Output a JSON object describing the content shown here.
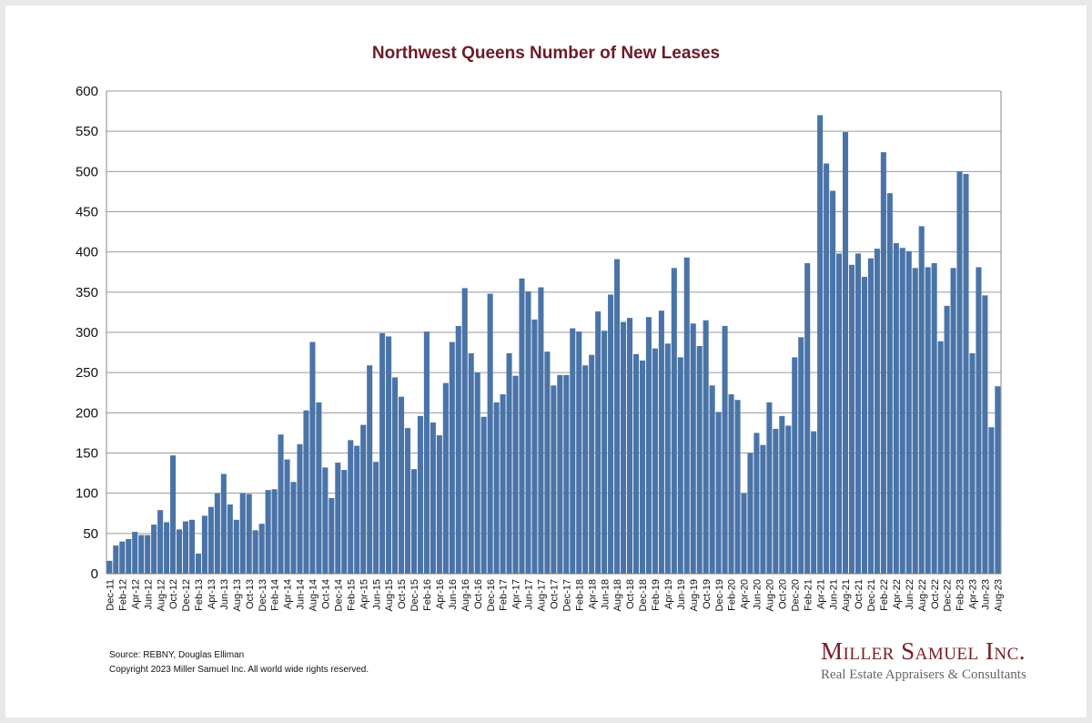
{
  "chart_data": {
    "type": "bar",
    "title": "Northwest Queens Number of New Leases",
    "xlabel": "",
    "ylabel": "",
    "ylim": [
      0,
      600
    ],
    "yticks": [
      0,
      50,
      100,
      150,
      200,
      250,
      300,
      350,
      400,
      450,
      500,
      550,
      600
    ],
    "grid": true,
    "bar_color": "#4a74a8",
    "categories": [
      "Dec-11",
      "Jan-12",
      "Feb-12",
      "Mar-12",
      "Apr-12",
      "May-12",
      "Jun-12",
      "Jul-12",
      "Aug-12",
      "Sep-12",
      "Oct-12",
      "Nov-12",
      "Dec-12",
      "Jan-13",
      "Feb-13",
      "Mar-13",
      "Apr-13",
      "May-13",
      "Jun-13",
      "Jul-13",
      "Aug-13",
      "Sep-13",
      "Oct-13",
      "Nov-13",
      "Dec-13",
      "Jan-14",
      "Feb-14",
      "Mar-14",
      "Apr-14",
      "May-14",
      "Jun-14",
      "Jul-14",
      "Aug-14",
      "Sep-14",
      "Oct-14",
      "Nov-14",
      "Dec-14",
      "Jan-15",
      "Feb-15",
      "Mar-15",
      "Apr-15",
      "May-15",
      "Jun-15",
      "Jul-15",
      "Aug-15",
      "Sep-15",
      "Oct-15",
      "Nov-15",
      "Dec-15",
      "Jan-16",
      "Feb-16",
      "Mar-16",
      "Apr-16",
      "May-16",
      "Jun-16",
      "Jul-16",
      "Aug-16",
      "Sep-16",
      "Oct-16",
      "Nov-16",
      "Dec-16",
      "Jan-17",
      "Feb-17",
      "Mar-17",
      "Apr-17",
      "May-17",
      "Jun-17",
      "Jul-17",
      "Aug-17",
      "Sep-17",
      "Oct-17",
      "Nov-17",
      "Dec-17",
      "Jan-18",
      "Feb-18",
      "Mar-18",
      "Apr-18",
      "May-18",
      "Jun-18",
      "Jul-18",
      "Aug-18",
      "Sep-18",
      "Oct-18",
      "Nov-18",
      "Dec-18",
      "Jan-19",
      "Feb-19",
      "Mar-19",
      "Apr-19",
      "May-19",
      "Jun-19",
      "Jul-19",
      "Aug-19",
      "Sep-19",
      "Oct-19",
      "Nov-19",
      "Dec-19",
      "Jan-20",
      "Feb-20",
      "Mar-20",
      "Apr-20",
      "May-20",
      "Jun-20",
      "Jul-20",
      "Aug-20",
      "Sep-20",
      "Oct-20",
      "Nov-20",
      "Dec-20",
      "Jan-21",
      "Feb-21",
      "Mar-21",
      "Apr-21",
      "May-21",
      "Jun-21",
      "Jul-21",
      "Aug-21",
      "Sep-21",
      "Oct-21",
      "Nov-21",
      "Dec-21",
      "Jan-22",
      "Feb-22",
      "Mar-22",
      "Apr-22",
      "May-22",
      "Jun-22",
      "Jul-22",
      "Aug-22",
      "Sep-22",
      "Oct-22",
      "Nov-22",
      "Dec-22",
      "Jan-23",
      "Feb-23",
      "Mar-23",
      "Apr-23",
      "May-23",
      "Jun-23",
      "Jul-23",
      "Aug-23"
    ],
    "tick_labels": [
      "Dec-11",
      "Feb-12",
      "Apr-12",
      "Jun-12",
      "Aug-12",
      "Oct-12",
      "Dec-12",
      "Feb-13",
      "Apr-13",
      "Jun-13",
      "Aug-13",
      "Oct-13",
      "Dec-13",
      "Feb-14",
      "Apr-14",
      "Jun-14",
      "Aug-14",
      "Oct-14",
      "Dec-14",
      "Feb-15",
      "Apr-15",
      "Jun-15",
      "Aug-15",
      "Oct-15",
      "Dec-15",
      "Feb-16",
      "Apr-16",
      "Jun-16",
      "Aug-16",
      "Oct-16",
      "Dec-16",
      "Feb-17",
      "Apr-17",
      "Jun-17",
      "Aug-17",
      "Oct-17",
      "Dec-17",
      "Feb-18",
      "Apr-18",
      "Jun-18",
      "Aug-18",
      "Oct-18",
      "Dec-18",
      "Feb-19",
      "Apr-19",
      "Jun-19",
      "Aug-19",
      "Oct-19",
      "Dec-19",
      "Feb-20",
      "Apr-20",
      "Jun-20",
      "Aug-20",
      "Oct-20",
      "Dec-20",
      "Feb-21",
      "Apr-21",
      "Jun-21",
      "Aug-21",
      "Oct-21",
      "Dec-21",
      "Feb-22",
      "Apr-22",
      "Jun-22",
      "Aug-22",
      "Oct-22",
      "Dec-22",
      "Feb-23",
      "Apr-23",
      "Jun-23",
      "Aug-23"
    ],
    "values": [
      16,
      35,
      40,
      43,
      52,
      48,
      48,
      61,
      79,
      64,
      147,
      55,
      65,
      67,
      25,
      72,
      83,
      100,
      124,
      86,
      67,
      100,
      99,
      54,
      62,
      104,
      105,
      173,
      142,
      114,
      161,
      203,
      288,
      213,
      132,
      94,
      138,
      129,
      166,
      159,
      185,
      259,
      139,
      299,
      295,
      244,
      220,
      181,
      130,
      196,
      301,
      188,
      172,
      237,
      288,
      308,
      355,
      274,
      250,
      195,
      348,
      213,
      223,
      274,
      246,
      367,
      351,
      316,
      356,
      276,
      234,
      247,
      247,
      305,
      301,
      259,
      272,
      326,
      302,
      347,
      391,
      313,
      318,
      273,
      265,
      319,
      280,
      327,
      286,
      380,
      269,
      393,
      311,
      283,
      315,
      234,
      201,
      308,
      223,
      216,
      100,
      150,
      175,
      160,
      213,
      180,
      196,
      184,
      269,
      294,
      386,
      177,
      570,
      510,
      476,
      398,
      549,
      384,
      398,
      369,
      392,
      404,
      524,
      473,
      411,
      405,
      401,
      380,
      432,
      381,
      386,
      289,
      333,
      380,
      500,
      497,
      274,
      381,
      346,
      182,
      233
    ]
  },
  "footer": {
    "source": "Source: REBNY, Douglas Elliman",
    "copyright": "Copyright 2023 Miller Samuel Inc.  All world wide rights reserved.",
    "brand_name": "Miller Samuel Inc.",
    "brand_tagline": "Real Estate Appraisers & Consultants"
  }
}
